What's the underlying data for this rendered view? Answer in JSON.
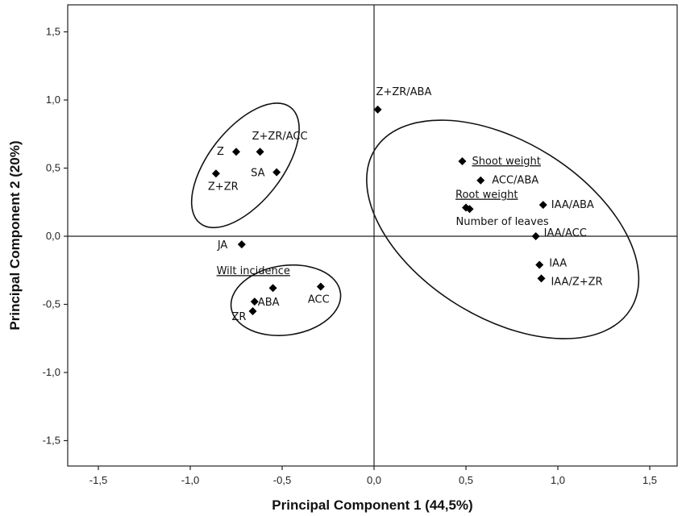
{
  "chart_data": {
    "type": "scatter",
    "xlabel": "Principal Component 1 (44,5%)",
    "ylabel": "Principal Component 2 (20%)",
    "xlim": [
      -1.5,
      1.5
    ],
    "ylim": [
      -1.5,
      1.5
    ],
    "x_ticks": [
      "-1,5",
      "-1,0",
      "-0,5",
      "0,0",
      "0,5",
      "1,0",
      "1,5"
    ],
    "y_ticks": [
      "1,5",
      "1,0",
      "0,5",
      "0,0",
      "-0,5",
      "-1,0",
      "-1,5"
    ],
    "grid": false,
    "reference_lines": {
      "x": 0,
      "y": 0
    },
    "marker": "diamond",
    "points": [
      {
        "label": "Z+ZR/ABA",
        "x": 0.02,
        "y": 0.93,
        "underline": false
      },
      {
        "label": "Z",
        "x": -0.75,
        "y": 0.62,
        "underline": false
      },
      {
        "label": "Z+ZR/ACC",
        "x": -0.62,
        "y": 0.62,
        "underline": false
      },
      {
        "label": "Z+ZR",
        "x": -0.86,
        "y": 0.46,
        "underline": false
      },
      {
        "label": "SA",
        "x": -0.53,
        "y": 0.47,
        "underline": false
      },
      {
        "label": "JA",
        "x": -0.72,
        "y": -0.06,
        "underline": false
      },
      {
        "label": "Wilt incidence",
        "x": -0.55,
        "y": -0.38,
        "underline": true
      },
      {
        "label": "ACC",
        "x": -0.29,
        "y": -0.37,
        "underline": false
      },
      {
        "label": "ABA",
        "x": -0.65,
        "y": -0.48,
        "underline": false
      },
      {
        "label": "ZR",
        "x": -0.66,
        "y": -0.55,
        "underline": false
      },
      {
        "label": "Shoot weight",
        "x": 0.48,
        "y": 0.55,
        "underline": true
      },
      {
        "label": "ACC/ABA",
        "x": 0.58,
        "y": 0.41,
        "underline": false
      },
      {
        "label": "Root weight",
        "x": 0.5,
        "y": 0.21,
        "underline": true
      },
      {
        "label": "Number of leaves",
        "x": 0.52,
        "y": 0.2,
        "underline": false
      },
      {
        "label": "IAA/ABA",
        "x": 0.92,
        "y": 0.23,
        "underline": false
      },
      {
        "label": "IAA/ACC",
        "x": 0.88,
        "y": 0.0,
        "underline": false
      },
      {
        "label": "IAA",
        "x": 0.9,
        "y": -0.21,
        "underline": false
      },
      {
        "label": "IAA/Z+ZR",
        "x": 0.91,
        "y": -0.31,
        "underline": false
      }
    ]
  }
}
